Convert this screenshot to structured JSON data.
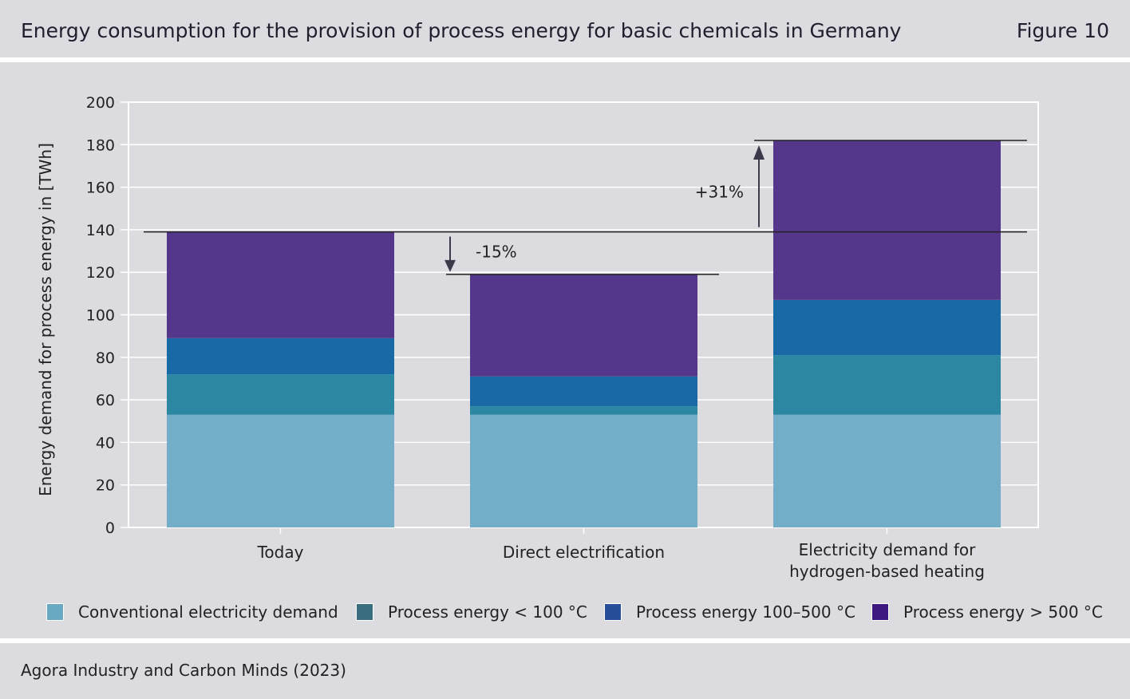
{
  "header": {
    "title": "Energy consumption for the provision of process energy for basic chemicals in Germany",
    "figure_label": "Figure 10"
  },
  "footer": {
    "source": "Agora Industry and Carbon Minds (2023)"
  },
  "colors": {
    "conventional": "#74adc8",
    "below100": "#2c87a2",
    "mid": "#1869a6",
    "above500": "#54378a",
    "legend_conventional": "#6aa9c2",
    "legend_below100": "#386e80",
    "legend_mid": "#274f99",
    "legend_above500": "#3d1a82",
    "grid": "#ffffff",
    "reference_line": "#222222"
  },
  "chart_data": {
    "type": "bar",
    "stacked": true,
    "ylabel": "Energy demand for process energy in [TWh]",
    "ylim": [
      0,
      200
    ],
    "yticks": [
      "0",
      "20",
      "40",
      "60",
      "80",
      "100",
      "120",
      "140",
      "160",
      "180",
      "200"
    ],
    "grid": true,
    "categories": [
      [
        "Today"
      ],
      [
        "Direct electrification"
      ],
      [
        "Electricity demand for",
        "hydrogen-based heating"
      ]
    ],
    "series": [
      {
        "name": "Conventional electricity demand",
        "key": "conventional",
        "values": [
          53,
          53,
          53
        ]
      },
      {
        "name": "Process energy < 100 °C",
        "key": "below100",
        "values": [
          19,
          4,
          28
        ]
      },
      {
        "name": "Process energy 100–500 °C",
        "key": "mid",
        "values": [
          17,
          14,
          26
        ]
      },
      {
        "name": "Process energy > 500 °C",
        "key": "above500",
        "values": [
          50,
          48,
          75
        ]
      }
    ],
    "totals": [
      139,
      119,
      182
    ],
    "annotations": [
      {
        "text": "-15%",
        "from_category": 0,
        "to_category": 1
      },
      {
        "text": "+31%",
        "from_category": 0,
        "to_category": 2
      }
    ],
    "legend_position": "bottom"
  }
}
